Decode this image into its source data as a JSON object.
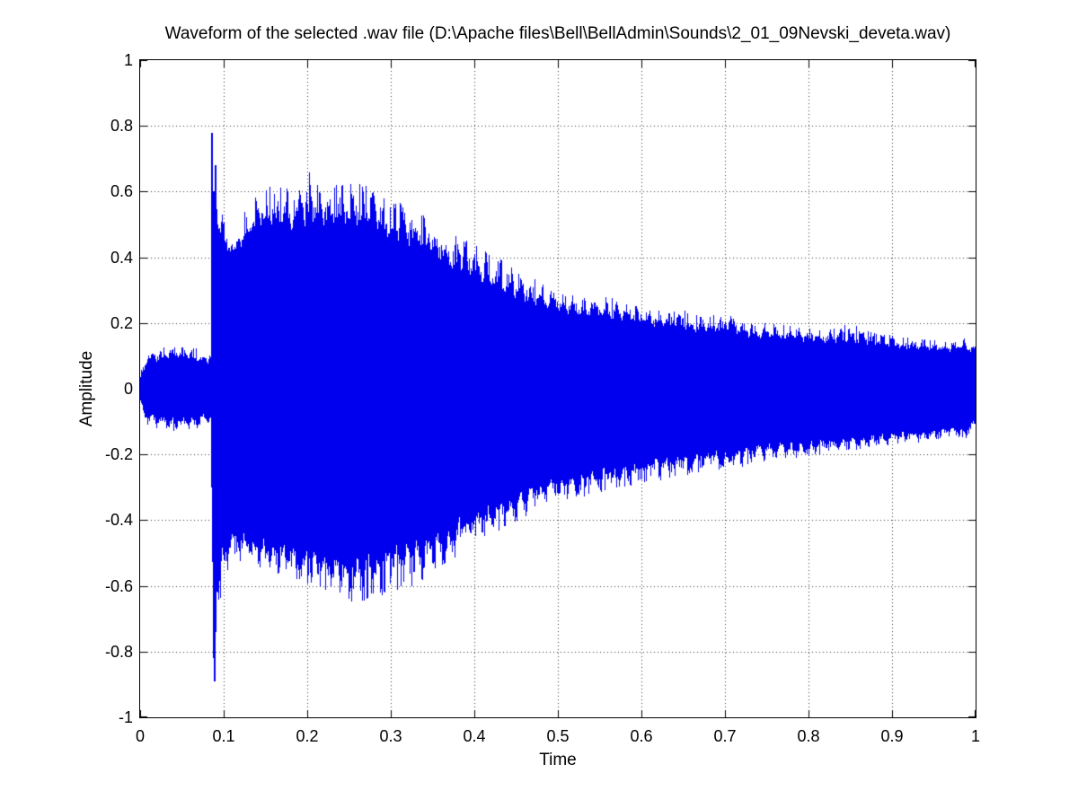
{
  "figure": {
    "background_color": "#ffffff",
    "axis_color": "#000000"
  },
  "chart_data": {
    "type": "line",
    "subtype": "audio-waveform",
    "title": "Waveform of the selected .wav file (D:\\Apache files\\Bell\\BellAdmin\\Sounds\\2_01_09Nevski_deveta.wav)",
    "xlabel": "Time",
    "ylabel": "Amplitude",
    "xlim": [
      0,
      1
    ],
    "ylim": [
      -1,
      1
    ],
    "x_ticks": [
      "0",
      "0.1",
      "0.2",
      "0.3",
      "0.4",
      "0.5",
      "0.6",
      "0.7",
      "0.8",
      "0.9",
      "1"
    ],
    "y_ticks": [
      "1",
      "0.8",
      "0.6",
      "0.4",
      "0.2",
      "0",
      "-0.2",
      "-0.4",
      "-0.6",
      "-0.8",
      "-1"
    ],
    "grid": "dotted",
    "grid_color": "#3a3a3a",
    "line_color": "#0000ee",
    "legend": "none",
    "description": "Bell strike waveform: low noise floor until t=0.085, sharp attack transient peaking +0.78 / -0.89 near t=0.09, dense ringing with beating envelope peaking about +0.67 near t=0.2 and -0.66 near t=0.26, then slow exponential-like decay to about +/-0.12 at t=1.",
    "envelope": {
      "columns": [
        "t",
        "peak_hi",
        "peak_lo",
        "core_hi",
        "core_lo"
      ],
      "points": [
        [
          0.0,
          0.05,
          -0.05,
          0.02,
          -0.02
        ],
        [
          0.008,
          0.11,
          -0.11,
          0.06,
          -0.06
        ],
        [
          0.03,
          0.13,
          -0.13,
          0.075,
          -0.075
        ],
        [
          0.06,
          0.13,
          -0.13,
          0.075,
          -0.075
        ],
        [
          0.08,
          0.11,
          -0.11,
          0.065,
          -0.065
        ],
        [
          0.0845,
          0.12,
          -0.12,
          0.07,
          -0.07
        ],
        [
          0.086,
          0.78,
          -0.45,
          0.35,
          -0.3
        ],
        [
          0.089,
          0.65,
          -0.88,
          0.4,
          -0.45
        ],
        [
          0.093,
          0.62,
          -0.7,
          0.42,
          -0.45
        ],
        [
          0.1,
          0.52,
          -0.58,
          0.4,
          -0.42
        ],
        [
          0.11,
          0.46,
          -0.52,
          0.38,
          -0.4
        ],
        [
          0.125,
          0.55,
          -0.53,
          0.41,
          -0.41
        ],
        [
          0.15,
          0.62,
          -0.56,
          0.43,
          -0.43
        ],
        [
          0.18,
          0.61,
          -0.58,
          0.44,
          -0.45
        ],
        [
          0.205,
          0.67,
          -0.6,
          0.45,
          -0.46
        ],
        [
          0.23,
          0.62,
          -0.63,
          0.45,
          -0.47
        ],
        [
          0.26,
          0.63,
          -0.66,
          0.44,
          -0.47
        ],
        [
          0.29,
          0.6,
          -0.63,
          0.43,
          -0.45
        ],
        [
          0.32,
          0.56,
          -0.61,
          0.4,
          -0.43
        ],
        [
          0.35,
          0.52,
          -0.57,
          0.36,
          -0.4
        ],
        [
          0.38,
          0.47,
          -0.52,
          0.32,
          -0.36
        ],
        [
          0.41,
          0.43,
          -0.47,
          0.29,
          -0.33
        ],
        [
          0.44,
          0.38,
          -0.43,
          0.26,
          -0.3
        ],
        [
          0.47,
          0.34,
          -0.38,
          0.23,
          -0.27
        ],
        [
          0.5,
          0.31,
          -0.35,
          0.21,
          -0.25
        ],
        [
          0.53,
          0.29,
          -0.33,
          0.2,
          -0.23
        ],
        [
          0.56,
          0.28,
          -0.31,
          0.19,
          -0.22
        ],
        [
          0.59,
          0.26,
          -0.3,
          0.18,
          -0.21
        ],
        [
          0.62,
          0.24,
          -0.28,
          0.17,
          -0.19
        ],
        [
          0.65,
          0.24,
          -0.27,
          0.16,
          -0.18
        ],
        [
          0.68,
          0.22,
          -0.25,
          0.15,
          -0.17
        ],
        [
          0.705,
          0.24,
          -0.25,
          0.15,
          -0.17
        ],
        [
          0.73,
          0.21,
          -0.23,
          0.14,
          -0.16
        ],
        [
          0.76,
          0.2,
          -0.22,
          0.14,
          -0.15
        ],
        [
          0.79,
          0.19,
          -0.21,
          0.13,
          -0.15
        ],
        [
          0.82,
          0.18,
          -0.2,
          0.13,
          -0.14
        ],
        [
          0.85,
          0.2,
          -0.19,
          0.12,
          -0.14
        ],
        [
          0.88,
          0.17,
          -0.18,
          0.12,
          -0.13
        ],
        [
          0.91,
          0.16,
          -0.17,
          0.11,
          -0.12
        ],
        [
          0.94,
          0.15,
          -0.16,
          0.11,
          -0.12
        ],
        [
          0.97,
          0.15,
          -0.15,
          0.1,
          -0.11
        ],
        [
          0.99,
          0.16,
          -0.15,
          0.1,
          -0.11
        ],
        [
          1.0,
          0.13,
          -0.12,
          0.08,
          -0.08
        ]
      ]
    },
    "transients": [
      {
        "t": 0.0862,
        "hi": 0.78,
        "lo": -0.3
      },
      {
        "t": 0.0878,
        "hi": 0.6,
        "lo": -0.82
      },
      {
        "t": 0.0888,
        "hi": 0.55,
        "lo": -0.89
      },
      {
        "t": 0.0905,
        "hi": 0.68,
        "lo": -0.6
      }
    ],
    "beat_period": 0.0128,
    "seed": 20090201
  }
}
